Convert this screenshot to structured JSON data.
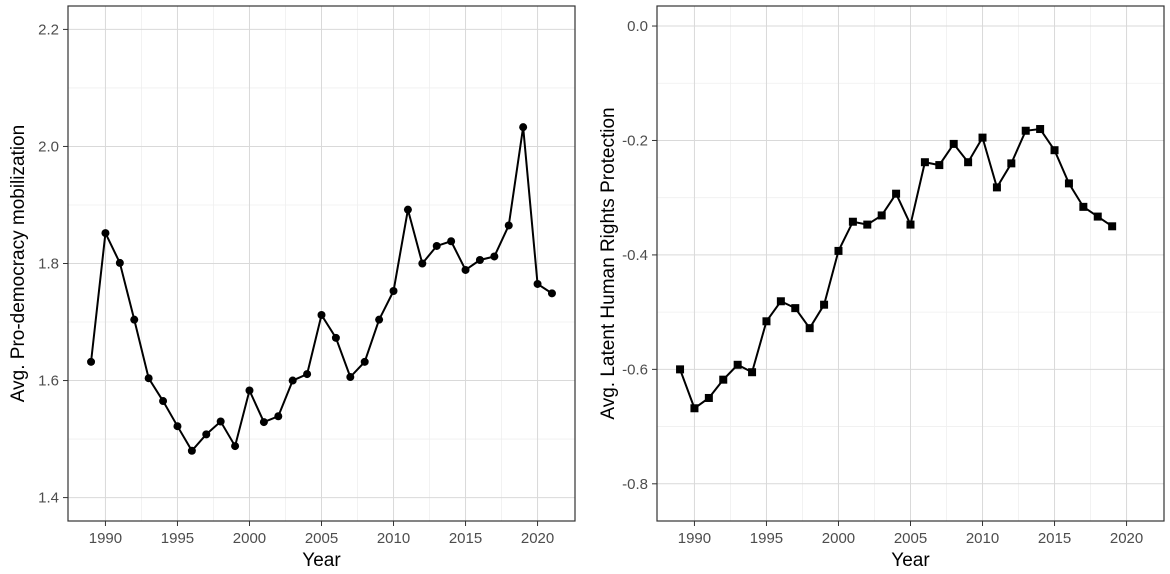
{
  "colors": {
    "series": "#000000",
    "grid": "#d9d9d9",
    "border": "#333333"
  },
  "chart_data": [
    {
      "type": "line",
      "xlabel": "Year",
      "ylabel": "Avg. Pro-democracy mobilization",
      "xlim": [
        1987.4,
        2022.6
      ],
      "ylim": [
        1.36,
        2.24
      ],
      "x_ticks": [
        1990,
        1995,
        2000,
        2005,
        2010,
        2015,
        2020
      ],
      "y_ticks": [
        1.4,
        1.6,
        1.8,
        2.0,
        2.2
      ],
      "y_tick_labels": [
        "1.4",
        "1.6",
        "1.8",
        "2.0",
        "2.2"
      ],
      "grid": true,
      "marker": "circle",
      "x": [
        1989,
        1990,
        1991,
        1992,
        1993,
        1994,
        1995,
        1996,
        1997,
        1998,
        1999,
        2000,
        2001,
        2002,
        2003,
        2004,
        2005,
        2006,
        2007,
        2008,
        2009,
        2010,
        2011,
        2012,
        2013,
        2014,
        2015,
        2016,
        2017,
        2018,
        2019,
        2020,
        2021
      ],
      "values": [
        1.632,
        1.852,
        1.801,
        1.704,
        1.604,
        1.565,
        1.522,
        1.48,
        1.508,
        1.53,
        1.488,
        1.583,
        1.529,
        1.539,
        1.6,
        1.611,
        1.712,
        1.673,
        1.606,
        1.632,
        1.704,
        1.753,
        1.892,
        1.8,
        1.83,
        1.838,
        1.789,
        1.806,
        1.812,
        1.865,
        2.033,
        1.765,
        1.749
      ]
    },
    {
      "type": "line",
      "xlabel": "Year",
      "ylabel": "Avg. Latent Human Rights Protection",
      "xlim": [
        1987.4,
        2022.6
      ],
      "ylim": [
        -0.865,
        0.035
      ],
      "x_ticks": [
        1990,
        1995,
        2000,
        2005,
        2010,
        2015,
        2020
      ],
      "y_ticks": [
        -0.8,
        -0.6,
        -0.4,
        -0.2,
        0.0
      ],
      "y_tick_labels": [
        "-0.8",
        "-0.6",
        "-0.4",
        "-0.2",
        "0.0"
      ],
      "grid": true,
      "marker": "square",
      "x": [
        1989,
        1990,
        1991,
        1992,
        1993,
        1994,
        1995,
        1996,
        1997,
        1998,
        1999,
        2000,
        2001,
        2002,
        2003,
        2004,
        2005,
        2006,
        2007,
        2008,
        2009,
        2010,
        2011,
        2012,
        2013,
        2014,
        2015,
        2016,
        2017,
        2018,
        2019
      ],
      "values": [
        -0.6,
        -0.668,
        -0.65,
        -0.618,
        -0.592,
        -0.605,
        -0.516,
        -0.481,
        -0.493,
        -0.528,
        -0.487,
        -0.393,
        -0.342,
        -0.347,
        -0.331,
        -0.293,
        -0.347,
        -0.238,
        -0.243,
        -0.206,
        -0.238,
        -0.195,
        -0.282,
        -0.24,
        -0.183,
        -0.18,
        -0.217,
        -0.275,
        -0.316,
        -0.333,
        -0.35
      ]
    }
  ]
}
